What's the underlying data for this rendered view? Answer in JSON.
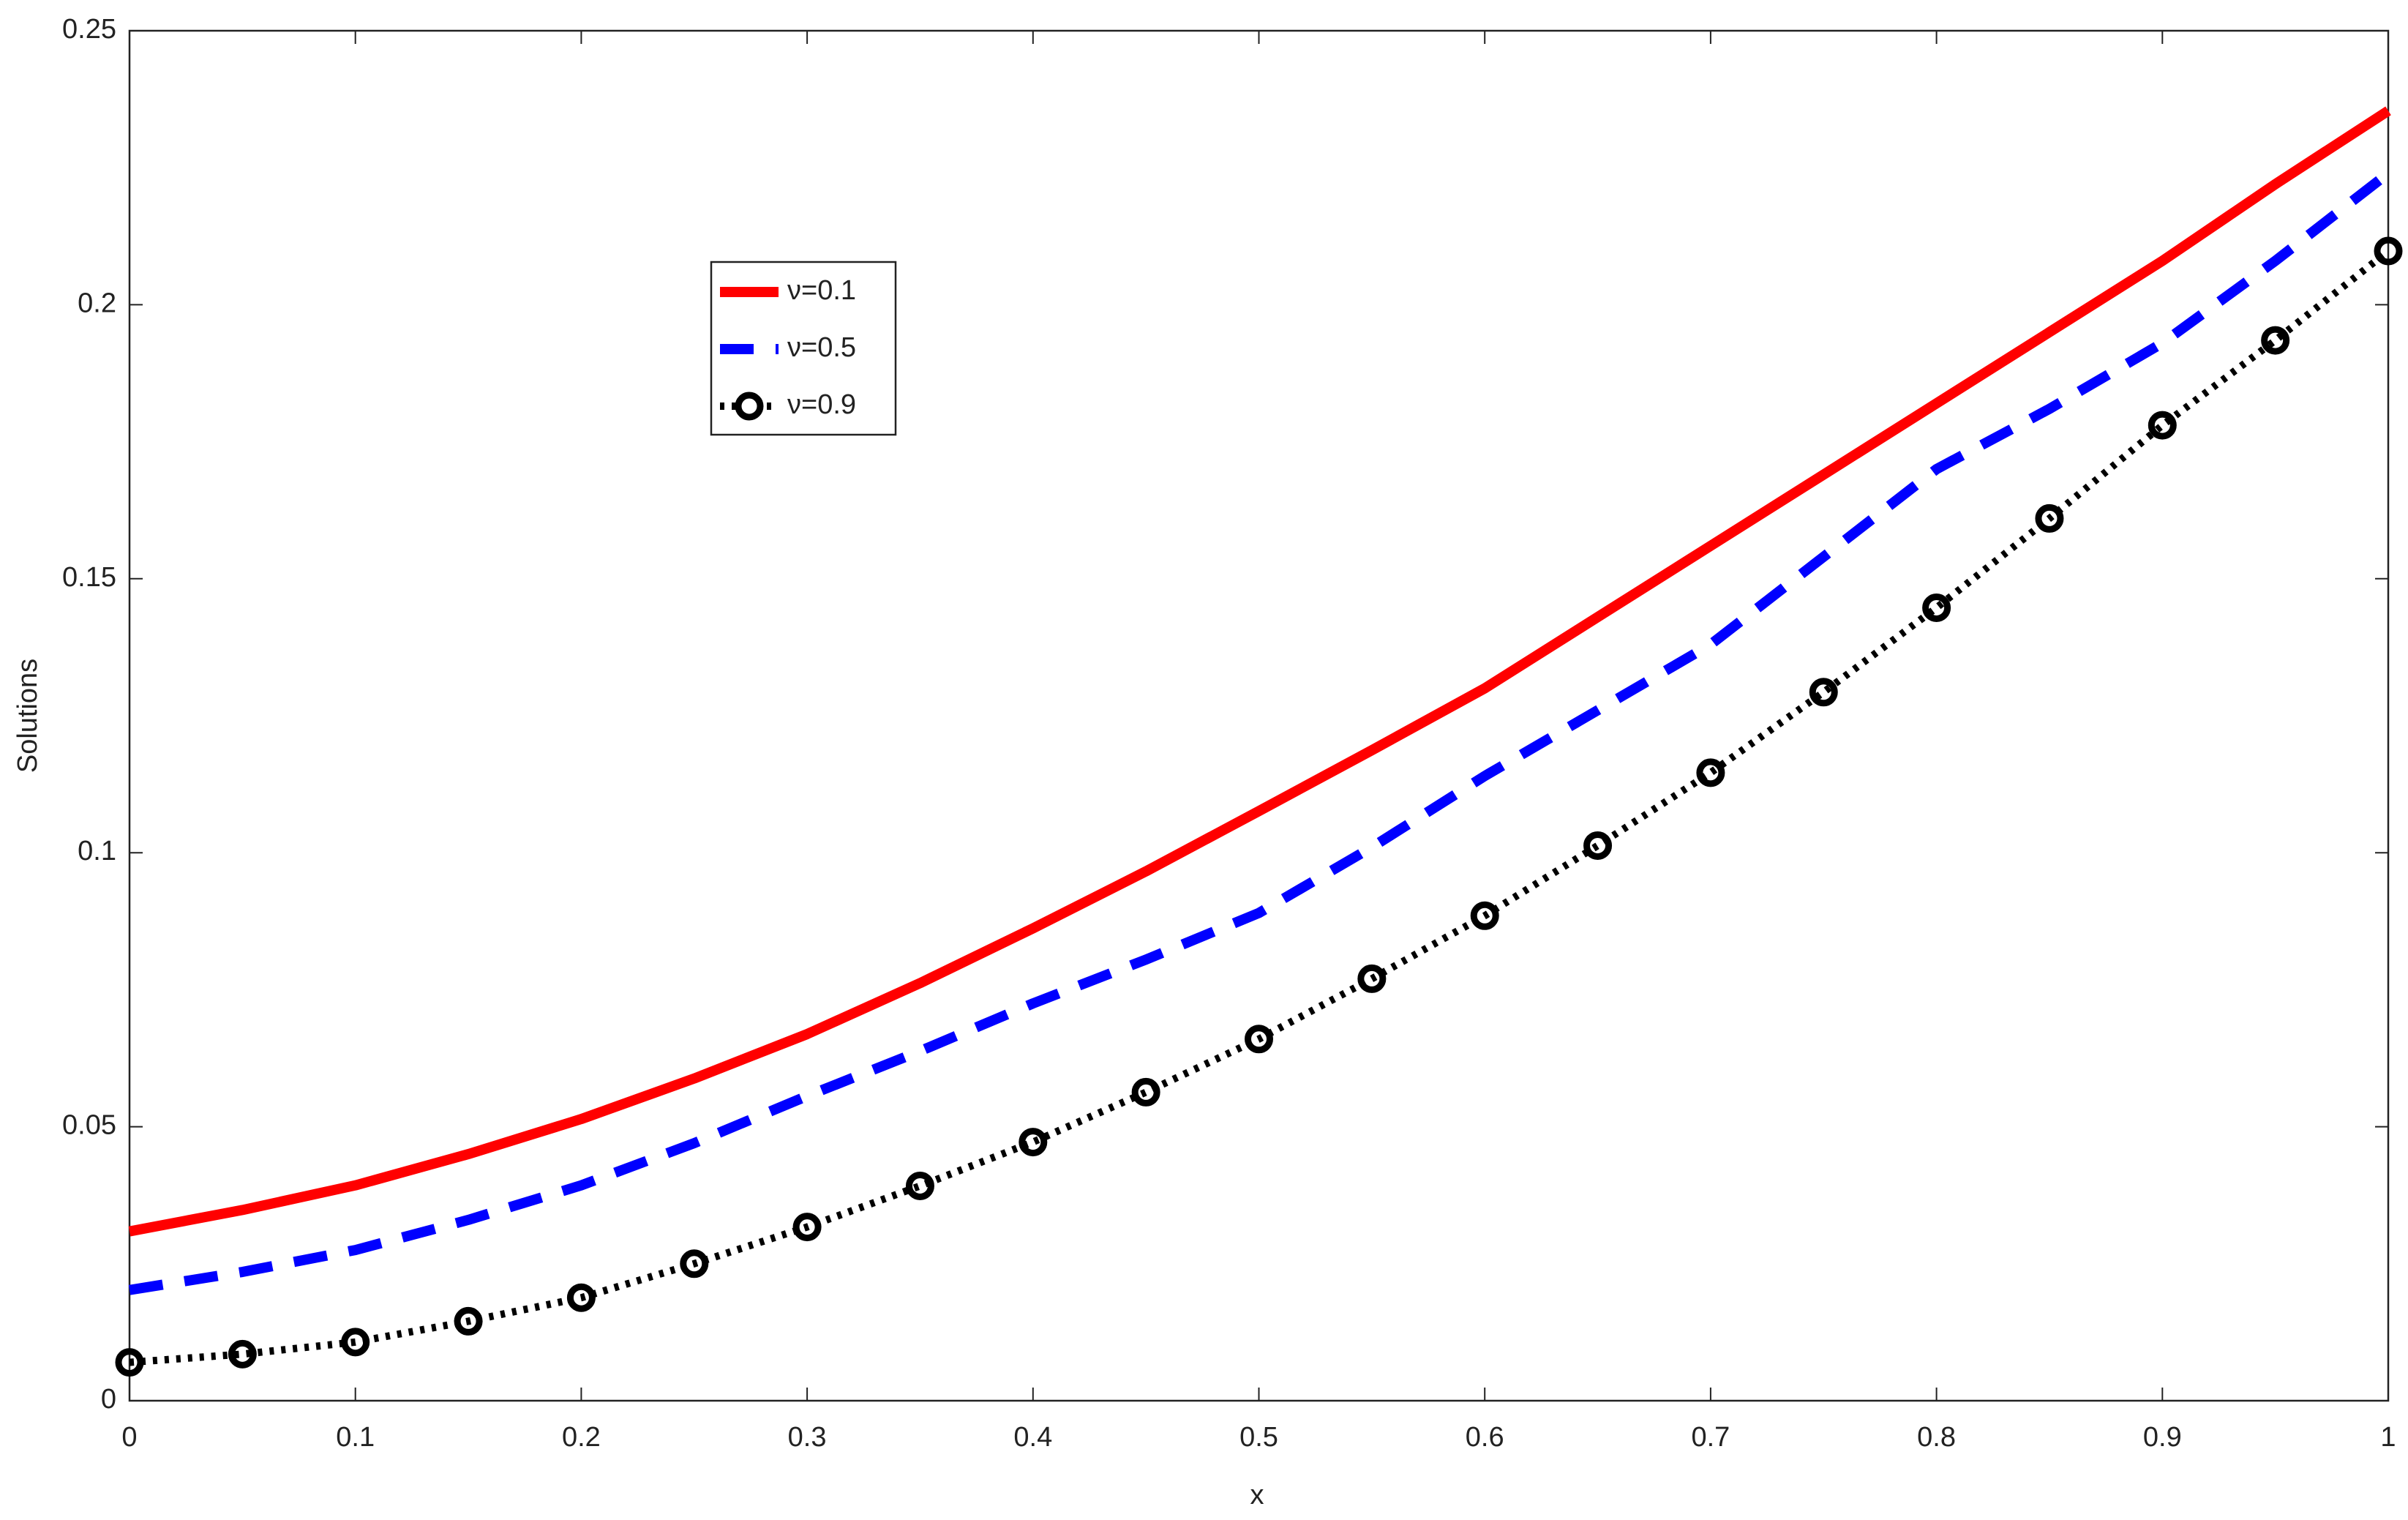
{
  "chart_data": {
    "type": "line",
    "x_label": "x",
    "y_label": "Solutions",
    "x": [
      0,
      0.05,
      0.1,
      0.15,
      0.2,
      0.25,
      0.3,
      0.35,
      0.4,
      0.45,
      0.5,
      0.55,
      0.6,
      0.65,
      0.7,
      0.75,
      0.8,
      0.85,
      0.9,
      0.95,
      1
    ],
    "series": [
      {
        "name": "ν=0.1",
        "color": "#ff0000",
        "style": "solid",
        "values": [
          0.0309,
          0.0348,
          0.0393,
          0.045,
          0.0514,
          0.0588,
          0.0669,
          0.0762,
          0.0862,
          0.0966,
          0.1076,
          0.1187,
          0.13,
          0.143,
          0.156,
          0.169,
          0.182,
          0.195,
          0.208,
          0.222,
          0.2354
        ]
      },
      {
        "name": "ν=0.5",
        "color": "#0000ff",
        "style": "dashed",
        "values": [
          0.0202,
          0.0235,
          0.0275,
          0.033,
          0.0393,
          0.047,
          0.0556,
          0.0638,
          0.0725,
          0.0805,
          0.089,
          0.101,
          0.114,
          0.126,
          0.138,
          0.154,
          0.17,
          0.181,
          0.193,
          0.208,
          0.224
        ]
      },
      {
        "name": "ν=0.9",
        "color": "#000000",
        "style": "dotted-circle",
        "values": [
          0.007,
          0.0085,
          0.0107,
          0.0145,
          0.0188,
          0.025,
          0.0317,
          0.0392,
          0.0472,
          0.0563,
          0.066,
          0.077,
          0.0885,
          0.1013,
          0.1146,
          0.1293,
          0.1447,
          0.161,
          0.178,
          0.1935,
          0.2098
        ]
      }
    ],
    "xlim": [
      0,
      1
    ],
    "xticks": [
      0,
      0.1,
      0.2,
      0.3,
      0.4,
      0.5,
      0.6,
      0.7,
      0.8,
      0.9,
      1
    ],
    "ylim": [
      0,
      0.25
    ],
    "yticks": [
      0,
      0.05,
      0.1,
      0.15,
      0.2,
      0.25
    ],
    "legend": "upper-left"
  }
}
